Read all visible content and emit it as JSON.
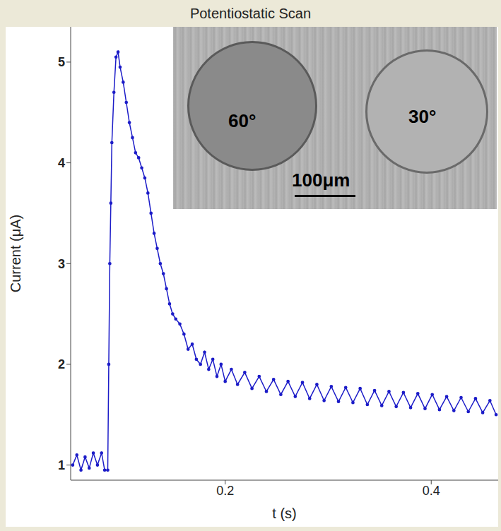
{
  "chart_data": {
    "type": "line",
    "title": "Potentiostatic Scan",
    "x_label": "t (s)",
    "y_label": "Current (μA)",
    "xlim": [
      0.05,
      0.465
    ],
    "ylim": [
      0.85,
      5.35
    ],
    "xticks": [
      0.2,
      0.4
    ],
    "yticks": [
      1,
      2,
      3,
      4,
      5
    ],
    "grid": false,
    "color": "#1c1cc8",
    "marker": "circle",
    "x": [
      0.052,
      0.056,
      0.06,
      0.064,
      0.068,
      0.072,
      0.076,
      0.08,
      0.083,
      0.086,
      0.087,
      0.088,
      0.089,
      0.09,
      0.092,
      0.094,
      0.096,
      0.098,
      0.101,
      0.104,
      0.107,
      0.11,
      0.113,
      0.116,
      0.119,
      0.122,
      0.125,
      0.128,
      0.131,
      0.134,
      0.137,
      0.14,
      0.143,
      0.146,
      0.149,
      0.152,
      0.156,
      0.16,
      0.164,
      0.168,
      0.172,
      0.176,
      0.18,
      0.184,
      0.188,
      0.192,
      0.196,
      0.2,
      0.206,
      0.212,
      0.219,
      0.226,
      0.233,
      0.24,
      0.247,
      0.254,
      0.261,
      0.268,
      0.275,
      0.282,
      0.289,
      0.296,
      0.303,
      0.31,
      0.317,
      0.324,
      0.331,
      0.338,
      0.345,
      0.352,
      0.359,
      0.366,
      0.373,
      0.38,
      0.387,
      0.394,
      0.401,
      0.408,
      0.415,
      0.422,
      0.429,
      0.436,
      0.443,
      0.45,
      0.457,
      0.463
    ],
    "values": [
      1.0,
      1.1,
      0.95,
      1.08,
      0.97,
      1.12,
      1.0,
      1.12,
      0.95,
      0.95,
      2.0,
      3.0,
      3.6,
      4.2,
      4.7,
      5.05,
      5.1,
      4.95,
      4.8,
      4.6,
      4.4,
      4.25,
      4.1,
      4.05,
      3.95,
      3.85,
      3.7,
      3.5,
      3.3,
      3.15,
      3.0,
      2.9,
      2.75,
      2.6,
      2.5,
      2.45,
      2.4,
      2.3,
      2.15,
      2.2,
      2.05,
      2.0,
      2.12,
      1.95,
      2.05,
      1.88,
      2.0,
      1.83,
      1.95,
      1.8,
      1.92,
      1.76,
      1.88,
      1.73,
      1.85,
      1.7,
      1.83,
      1.68,
      1.82,
      1.66,
      1.8,
      1.64,
      1.78,
      1.63,
      1.77,
      1.62,
      1.76,
      1.6,
      1.74,
      1.59,
      1.73,
      1.58,
      1.72,
      1.57,
      1.71,
      1.56,
      1.7,
      1.55,
      1.68,
      1.54,
      1.67,
      1.53,
      1.66,
      1.52,
      1.64,
      1.5
    ],
    "inset": {
      "labels": [
        "60°",
        "30°"
      ],
      "scale_bar": "100μm"
    }
  }
}
